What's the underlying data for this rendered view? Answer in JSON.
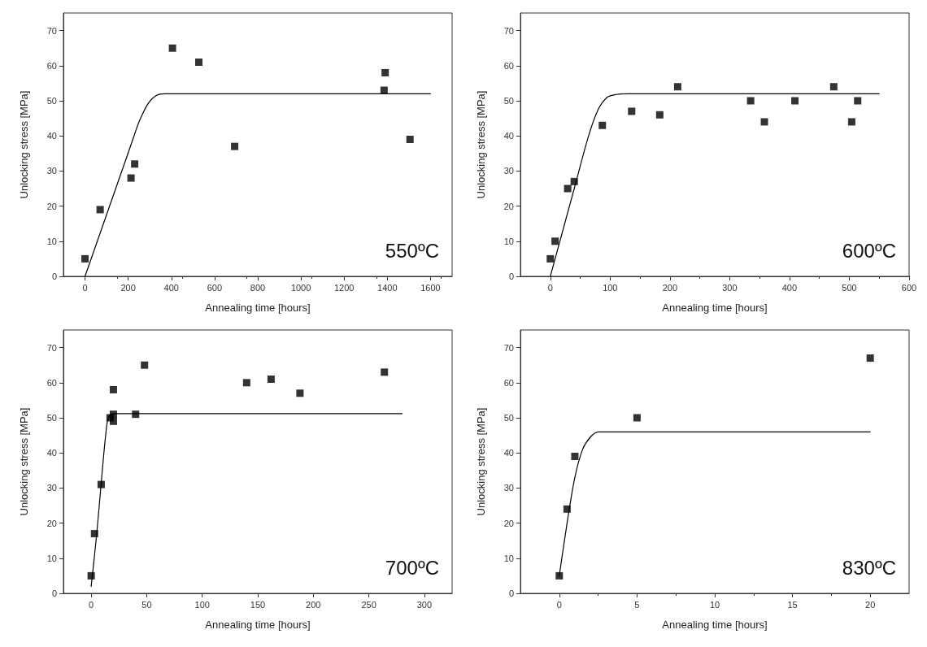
{
  "chart_data": [
    {
      "type": "scatter",
      "xlabel": "Annealing time [hours]",
      "ylabel": "Unlocking stress [MPa]",
      "annotations": [
        "550ºC"
      ],
      "xlim": [
        -100,
        1700
      ],
      "xticks": [
        0,
        200,
        400,
        600,
        800,
        1000,
        1200,
        1400,
        1600
      ],
      "ylim": [
        0,
        75
      ],
      "yticks": [
        0,
        10,
        20,
        30,
        40,
        50,
        60,
        70
      ],
      "grid": false,
      "series": [
        {
          "marker": "square",
          "color": "#000000",
          "x": [
            0,
            70,
            213,
            230,
            405,
            527,
            693,
            1385,
            1390,
            1505
          ],
          "values": [
            5,
            19,
            28,
            32,
            65,
            61,
            37,
            53,
            58,
            39
          ]
        },
        {
          "type": "line",
          "marker": "none",
          "line_style": "solid",
          "color": "#000000",
          "x": [
            0,
            50,
            100,
            150,
            200,
            227,
            250,
            290,
            330,
            370,
            400,
            1600
          ],
          "values": [
            0,
            8.8,
            17.6,
            26.4,
            35.2,
            40,
            44,
            49,
            51.5,
            52,
            52,
            52
          ]
        }
      ]
    },
    {
      "type": "scatter",
      "xlabel": "Annealing time [hours]",
      "ylabel": "Unlocking stress [MPa]",
      "annotations": [
        "600ºC"
      ],
      "xlim": [
        -50,
        600
      ],
      "xticks": [
        0,
        100,
        200,
        300,
        400,
        500,
        600
      ],
      "ylim": [
        0,
        75
      ],
      "yticks": [
        0,
        10,
        20,
        30,
        40,
        50,
        60,
        70
      ],
      "grid": false,
      "series": [
        {
          "marker": "square",
          "color": "#000000",
          "x": [
            0,
            8,
            29,
            40,
            87,
            136,
            183,
            213,
            335,
            358,
            409,
            474,
            504,
            514
          ],
          "values": [
            5,
            10,
            25,
            27,
            43,
            47,
            46,
            54,
            50,
            44,
            50,
            54,
            44,
            50
          ]
        },
        {
          "type": "line",
          "marker": "none",
          "line_style": "solid",
          "color": "#000000",
          "x": [
            0,
            20,
            40,
            64,
            80,
            95,
            110,
            130,
            550
          ],
          "values": [
            0,
            12.5,
            25,
            40,
            47.5,
            51,
            51.8,
            52,
            52
          ]
        }
      ]
    },
    {
      "type": "scatter",
      "xlabel": "Annealing time [hours]",
      "ylabel": "Unlocking stress [MPa]",
      "annotations": [
        "700ºC"
      ],
      "xlim": [
        -25,
        325
      ],
      "xticks": [
        0,
        50,
        100,
        150,
        200,
        250,
        300
      ],
      "ylim": [
        0,
        75
      ],
      "yticks": [
        0,
        10,
        20,
        30,
        40,
        50,
        60,
        70
      ],
      "grid": false,
      "series": [
        {
          "marker": "square",
          "color": "#000000",
          "x": [
            0,
            3,
            9,
            20,
            17,
            20,
            20,
            40,
            48,
            140,
            162,
            188,
            264
          ],
          "values": [
            5,
            17,
            31,
            58,
            50,
            51,
            49,
            51,
            65,
            60,
            61,
            57,
            63
          ]
        },
        {
          "type": "line",
          "marker": "none",
          "line_style": "solid",
          "color": "#000000",
          "x": [
            0,
            5,
            10,
            13,
            15,
            18,
            25,
            280
          ],
          "values": [
            2,
            17,
            35,
            45,
            49.5,
            51,
            51.2,
            51.2
          ]
        }
      ]
    },
    {
      "type": "scatter",
      "xlabel": "Annealing time [hours]",
      "ylabel": "Unlocking stress [MPa]",
      "annotations": [
        "830ºC"
      ],
      "xlim": [
        -2.5,
        22.5
      ],
      "xticks": [
        0,
        5,
        10,
        15,
        20
      ],
      "ylim": [
        0,
        75
      ],
      "yticks": [
        0,
        10,
        20,
        30,
        40,
        50,
        60,
        70
      ],
      "grid": false,
      "series": [
        {
          "marker": "square",
          "color": "#000000",
          "x": [
            0,
            0.5,
            1,
            5,
            20
          ],
          "values": [
            5,
            24,
            39,
            50,
            67
          ]
        },
        {
          "type": "line",
          "marker": "none",
          "line_style": "solid",
          "color": "#000000",
          "x": [
            0,
            0.5,
            1,
            1.5,
            2,
            2.5,
            3,
            20
          ],
          "values": [
            5,
            20,
            33,
            41,
            44.5,
            46,
            46,
            46
          ]
        }
      ]
    }
  ]
}
